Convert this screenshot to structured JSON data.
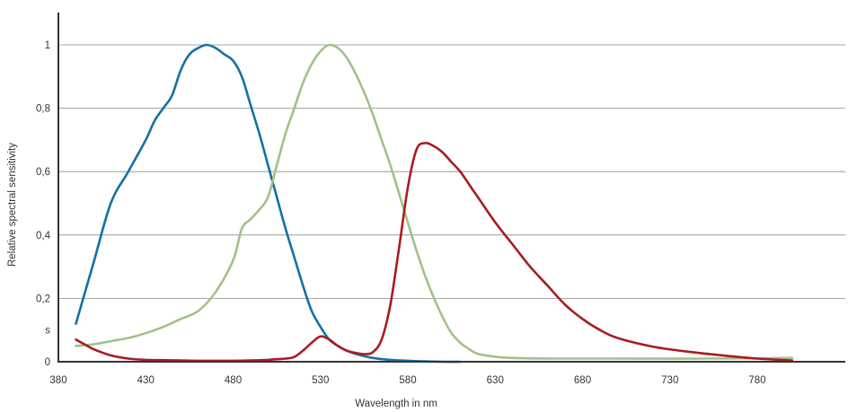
{
  "chart_data": {
    "type": "line",
    "title": "",
    "xlabel": "Wavelength in nm",
    "ylabel": "Relative spectral sensitivity",
    "xlim": [
      380,
      950
    ],
    "ylim": [
      0,
      1.1
    ],
    "x_ticks": [
      "380",
      "430",
      "480",
      "530",
      "580",
      "630",
      "680",
      "730",
      "780"
    ],
    "y_ticks": [
      {
        "value": 0,
        "label": "0"
      },
      {
        "value": 0.1,
        "label": "s"
      },
      {
        "value": 0.2,
        "label": "0,2"
      },
      {
        "value": 0.4,
        "label": "0,4"
      },
      {
        "value": 0.6,
        "label": "0,6"
      },
      {
        "value": 0.8,
        "label": "0,8"
      },
      {
        "value": 1.0,
        "label": "1"
      }
    ],
    "grid": true,
    "legend": "none",
    "series": [
      {
        "color": "#1570a6",
        "x": [
          390,
          400,
          410,
          420,
          430,
          435,
          440,
          445,
          450,
          455,
          460,
          465,
          470,
          475,
          480,
          485,
          490,
          495,
          500,
          505,
          510,
          515,
          520,
          525,
          530,
          535,
          540,
          545,
          550,
          560,
          570,
          580,
          590,
          600,
          610
        ],
        "y": [
          0.12,
          0.31,
          0.5,
          0.6,
          0.7,
          0.76,
          0.8,
          0.84,
          0.92,
          0.97,
          0.99,
          1.0,
          0.99,
          0.97,
          0.95,
          0.9,
          0.81,
          0.72,
          0.62,
          0.52,
          0.42,
          0.33,
          0.24,
          0.16,
          0.11,
          0.07,
          0.05,
          0.035,
          0.025,
          0.012,
          0.006,
          0.003,
          0.001,
          0.0,
          0.0
        ]
      },
      {
        "color": "#a3c088",
        "x": [
          390,
          400,
          410,
          420,
          430,
          440,
          450,
          460,
          470,
          480,
          485,
          490,
          495,
          500,
          505,
          510,
          515,
          520,
          525,
          530,
          535,
          540,
          545,
          550,
          555,
          560,
          565,
          570,
          575,
          580,
          585,
          590,
          595,
          600,
          605,
          610,
          615,
          620,
          630,
          640,
          660,
          700,
          750,
          800
        ],
        "y": [
          0.05,
          0.055,
          0.065,
          0.075,
          0.09,
          0.11,
          0.135,
          0.16,
          0.22,
          0.32,
          0.42,
          0.45,
          0.48,
          0.52,
          0.62,
          0.72,
          0.8,
          0.88,
          0.94,
          0.98,
          1.0,
          0.99,
          0.96,
          0.91,
          0.85,
          0.78,
          0.7,
          0.62,
          0.53,
          0.44,
          0.35,
          0.27,
          0.2,
          0.14,
          0.09,
          0.06,
          0.04,
          0.025,
          0.016,
          0.012,
          0.01,
          0.01,
          0.01,
          0.012
        ]
      },
      {
        "color": "#a81c22",
        "x": [
          390,
          395,
          400,
          410,
          420,
          430,
          440,
          450,
          460,
          470,
          480,
          490,
          500,
          505,
          510,
          515,
          520,
          525,
          530,
          535,
          540,
          545,
          550,
          555,
          560,
          565,
          570,
          575,
          580,
          585,
          590,
          595,
          600,
          605,
          610,
          615,
          620,
          630,
          640,
          650,
          660,
          670,
          680,
          690,
          700,
          720,
          740,
          760,
          780,
          800
        ],
        "y": [
          0.07,
          0.055,
          0.04,
          0.02,
          0.01,
          0.006,
          0.005,
          0.004,
          0.003,
          0.003,
          0.003,
          0.004,
          0.006,
          0.008,
          0.01,
          0.015,
          0.035,
          0.06,
          0.08,
          0.07,
          0.05,
          0.035,
          0.028,
          0.024,
          0.03,
          0.07,
          0.18,
          0.36,
          0.55,
          0.67,
          0.69,
          0.68,
          0.66,
          0.63,
          0.6,
          0.56,
          0.52,
          0.44,
          0.37,
          0.3,
          0.24,
          0.18,
          0.135,
          0.1,
          0.075,
          0.048,
          0.032,
          0.02,
          0.01,
          0.004
        ]
      }
    ]
  }
}
